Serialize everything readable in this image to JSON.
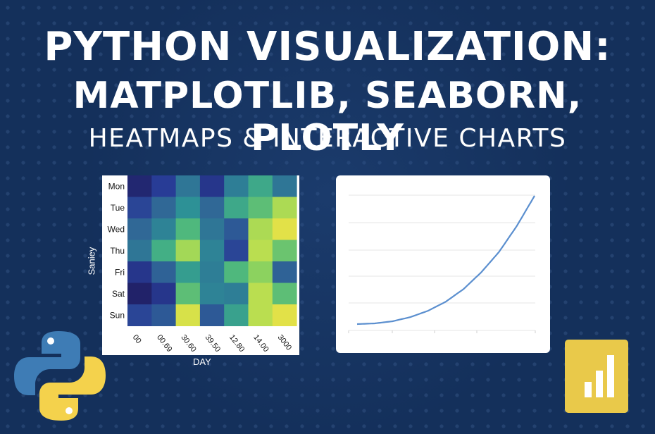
{
  "title": {
    "line1": "PYTHON VISUALIZATION:",
    "line2": "MATPLOTLIB, SEABORN, PLOTLY",
    "line3": "HEATMAPS & INTERACTIVE CHARTS"
  },
  "colors": {
    "background": "#14305b",
    "line": "#5b8fcf",
    "plotly_yellow": "#e9c94a",
    "python_blue": "#3e7cb5",
    "python_yellow": "#f4d24c"
  },
  "icons": {
    "python": "python-logo-icon",
    "plotly": "bar-chart-app-icon"
  },
  "chart_data": [
    {
      "type": "heatmap",
      "ylabel": "Saniey",
      "xlabel": "DAY",
      "rows": [
        "Mon",
        "Tue",
        "Wed",
        "Thu",
        "Fri",
        "Sat",
        "Sun"
      ],
      "cols": [
        "00",
        "00.69",
        "30.60",
        "39.50",
        "12.80",
        "14.00",
        "3000"
      ],
      "values": [
        [
          0.05,
          0.15,
          0.35,
          0.12,
          0.38,
          0.55,
          0.35
        ],
        [
          0.18,
          0.3,
          0.45,
          0.3,
          0.55,
          0.65,
          0.82
        ],
        [
          0.3,
          0.4,
          0.62,
          0.35,
          0.25,
          0.82,
          0.95
        ],
        [
          0.35,
          0.58,
          0.8,
          0.4,
          0.18,
          0.85,
          0.68
        ],
        [
          0.12,
          0.28,
          0.5,
          0.38,
          0.62,
          0.75,
          0.28
        ],
        [
          0.03,
          0.12,
          0.65,
          0.4,
          0.38,
          0.85,
          0.65
        ],
        [
          0.18,
          0.25,
          0.92,
          0.25,
          0.52,
          0.85,
          0.95
        ]
      ]
    },
    {
      "type": "line",
      "grid": true,
      "series": [
        {
          "x": [
            0,
            1,
            2,
            3,
            4,
            5,
            6,
            7,
            8,
            9,
            10
          ],
          "y": [
            0.2,
            0.3,
            0.6,
            1.2,
            2.1,
            3.4,
            5.2,
            7.6,
            10.5,
            14.2,
            18.5
          ]
        }
      ]
    }
  ]
}
